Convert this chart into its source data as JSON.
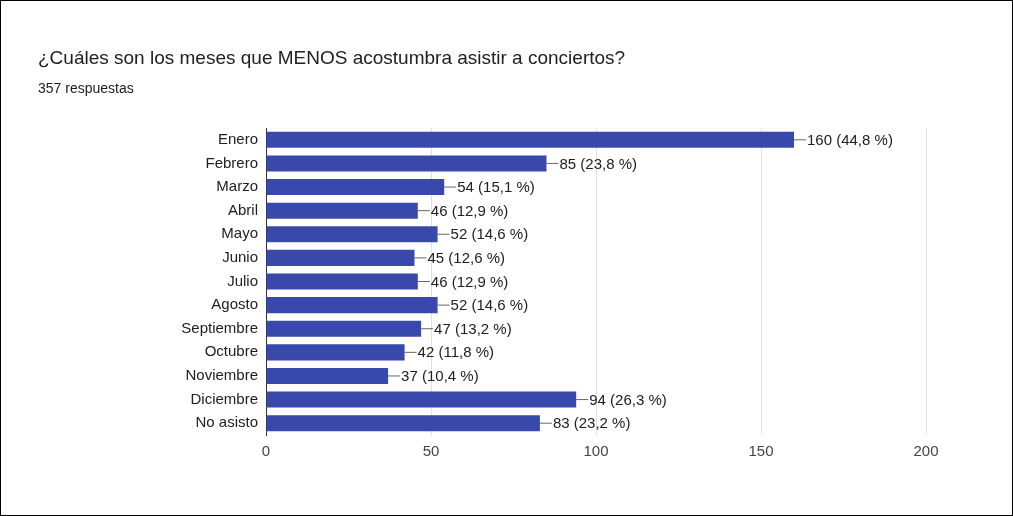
{
  "chart_data": {
    "type": "bar",
    "orientation": "horizontal",
    "title": "¿Cuáles son los meses que MENOS acostumbra asistir a conciertos?",
    "subtitle": "357 respuestas",
    "categories": [
      "Enero",
      "Febrero",
      "Marzo",
      "Abril",
      "Mayo",
      "Junio",
      "Julio",
      "Agosto",
      "Septiembre",
      "Octubre",
      "Noviembre",
      "Diciembre",
      "No asisto"
    ],
    "values": [
      160,
      85,
      54,
      46,
      52,
      45,
      46,
      52,
      47,
      42,
      37,
      94,
      83
    ],
    "value_labels": [
      "160 (44,8 %)",
      "85 (23,8 %)",
      "54 (15,1 %)",
      "46 (12,9 %)",
      "52 (14,6 %)",
      "45 (12,6 %)",
      "46 (12,9 %)",
      "52 (14,6 %)",
      "47 (13,2 %)",
      "42 (11,8 %)",
      "37 (10,4 %)",
      "94 (26,3 %)",
      "83 (23,2 %)"
    ],
    "color": "#3949ab",
    "xlim": [
      0,
      200
    ],
    "xticks": [
      0,
      50,
      100,
      150,
      200
    ],
    "grid": "x",
    "legend": false
  }
}
